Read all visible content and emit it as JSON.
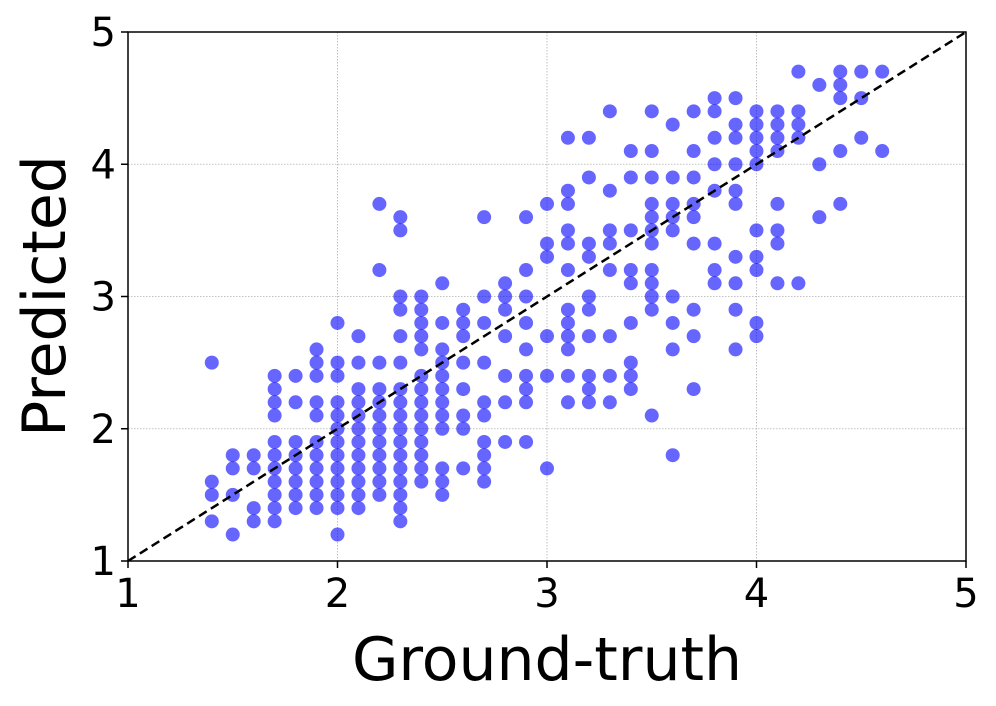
{
  "chart_data": {
    "type": "scatter",
    "xlabel": "Ground-truth",
    "ylabel": "Predicted",
    "xlim": [
      1,
      5
    ],
    "ylim": [
      1,
      5
    ],
    "xticks": [
      1,
      2,
      3,
      4,
      5
    ],
    "yticks": [
      1,
      2,
      3,
      4,
      5
    ],
    "grid": true,
    "diagonal": true,
    "color": "#0000ff",
    "opacity": 0.6,
    "x": [
      1.4,
      1.4,
      1.4,
      1.4,
      1.5,
      1.5,
      1.5,
      1.5,
      1.6,
      1.6,
      1.6,
      1.6,
      1.7,
      1.7,
      1.7,
      1.7,
      1.7,
      1.7,
      1.7,
      1.7,
      1.7,
      1.7,
      1.7,
      1.8,
      1.8,
      1.8,
      1.8,
      1.8,
      1.8,
      1.8,
      1.8,
      1.9,
      1.9,
      1.9,
      1.9,
      1.9,
      1.9,
      1.9,
      1.9,
      1.9,
      1.9,
      1.9,
      2.0,
      2.0,
      2.0,
      2.0,
      2.0,
      2.0,
      2.0,
      2.0,
      2.0,
      2.0,
      2.0,
      2.0,
      2.0,
      2.1,
      2.1,
      2.1,
      2.1,
      2.1,
      2.1,
      2.1,
      2.1,
      2.1,
      2.1,
      2.1,
      2.1,
      2.2,
      2.2,
      2.2,
      2.2,
      2.2,
      2.2,
      2.2,
      2.2,
      2.2,
      2.2,
      2.2,
      2.2,
      2.3,
      2.3,
      2.3,
      2.3,
      2.3,
      2.3,
      2.3,
      2.3,
      2.3,
      2.3,
      2.3,
      2.3,
      2.3,
      2.3,
      2.3,
      2.3,
      2.3,
      2.4,
      2.4,
      2.4,
      2.4,
      2.4,
      2.4,
      2.4,
      2.4,
      2.4,
      2.4,
      2.4,
      2.4,
      2.4,
      2.4,
      2.5,
      2.5,
      2.5,
      2.5,
      2.5,
      2.5,
      2.5,
      2.5,
      2.5,
      2.5,
      2.5,
      2.5,
      2.6,
      2.6,
      2.6,
      2.6,
      2.6,
      2.6,
      2.6,
      2.6,
      2.7,
      2.7,
      2.7,
      2.7,
      2.7,
      2.7,
      2.7,
      2.7,
      2.7,
      2.7,
      2.8,
      2.8,
      2.8,
      2.8,
      2.8,
      2.8,
      2.8,
      2.9,
      2.9,
      2.9,
      2.9,
      2.9,
      2.9,
      2.9,
      2.9,
      2.9,
      3.0,
      3.0,
      3.0,
      3.0,
      3.0,
      3.0,
      3.1,
      3.1,
      3.1,
      3.1,
      3.1,
      3.1,
      3.1,
      3.1,
      3.1,
      3.1,
      3.1,
      3.1,
      3.2,
      3.2,
      3.2,
      3.2,
      3.2,
      3.2,
      3.2,
      3.2,
      3.2,
      3.2,
      3.3,
      3.3,
      3.3,
      3.3,
      3.3,
      3.3,
      3.3,
      3.3,
      3.4,
      3.4,
      3.4,
      3.4,
      3.4,
      3.4,
      3.4,
      3.4,
      3.4,
      3.5,
      3.5,
      3.5,
      3.5,
      3.5,
      3.5,
      3.5,
      3.5,
      3.5,
      3.5,
      3.5,
      3.5,
      3.6,
      3.6,
      3.6,
      3.6,
      3.6,
      3.6,
      3.6,
      3.6,
      3.6,
      3.7,
      3.7,
      3.7,
      3.7,
      3.7,
      3.7,
      3.7,
      3.7,
      3.7,
      3.8,
      3.8,
      3.8,
      3.8,
      3.8,
      3.8,
      3.8,
      3.8,
      3.9,
      3.9,
      3.9,
      3.9,
      3.9,
      3.9,
      3.9,
      3.9,
      3.9,
      3.9,
      4.0,
      4.0,
      4.0,
      4.0,
      4.0,
      4.0,
      4.0,
      4.0,
      4.0,
      4.0,
      4.1,
      4.1,
      4.1,
      4.1,
      4.1,
      4.1,
      4.1,
      4.1,
      4.2,
      4.2,
      4.2,
      4.2,
      4.2,
      4.3,
      4.3,
      4.3,
      4.4,
      4.4,
      4.4,
      4.4,
      4.4,
      4.5,
      4.5,
      4.5,
      4.6,
      4.6
    ],
    "values": [
      2.5,
      1.6,
      1.5,
      1.3,
      1.8,
      1.7,
      1.5,
      1.2,
      1.8,
      1.7,
      1.4,
      1.3,
      2.4,
      2.3,
      2.2,
      2.1,
      1.9,
      1.8,
      1.7,
      1.6,
      1.5,
      1.4,
      1.3,
      2.4,
      2.2,
      1.9,
      1.8,
      1.7,
      1.6,
      1.5,
      1.4,
      2.6,
      2.5,
      2.4,
      2.2,
      2.1,
      1.9,
      1.8,
      1.7,
      1.6,
      1.5,
      1.4,
      2.8,
      2.5,
      2.4,
      2.2,
      2.1,
      2.0,
      1.9,
      1.8,
      1.7,
      1.6,
      1.5,
      1.4,
      1.2,
      2.7,
      2.5,
      2.3,
      2.2,
      2.1,
      2.0,
      1.9,
      1.8,
      1.7,
      1.6,
      1.5,
      1.4,
      3.7,
      3.2,
      2.5,
      2.3,
      2.2,
      2.1,
      2.0,
      1.9,
      1.8,
      1.7,
      1.6,
      1.5,
      3.6,
      3.5,
      3.0,
      2.9,
      2.7,
      2.5,
      2.3,
      2.2,
      2.1,
      2.0,
      1.9,
      1.8,
      1.7,
      1.6,
      1.5,
      1.4,
      1.3,
      3.0,
      2.9,
      2.8,
      2.7,
      2.6,
      2.4,
      2.3,
      2.2,
      2.1,
      2.0,
      1.9,
      1.8,
      1.7,
      1.6,
      3.1,
      2.8,
      2.6,
      2.5,
      2.4,
      2.3,
      2.2,
      2.1,
      2.0,
      1.7,
      1.6,
      1.5,
      2.9,
      2.8,
      2.7,
      2.5,
      2.3,
      2.1,
      2.0,
      1.7,
      3.6,
      3.0,
      2.8,
      2.5,
      2.2,
      2.1,
      1.9,
      1.8,
      1.7,
      1.6,
      3.1,
      3.0,
      2.9,
      2.7,
      2.4,
      2.2,
      1.9,
      3.6,
      3.2,
      3.0,
      2.8,
      2.6,
      2.4,
      2.3,
      2.2,
      1.9,
      3.7,
      3.4,
      3.3,
      2.7,
      2.4,
      1.7,
      4.2,
      3.8,
      3.7,
      3.5,
      3.4,
      3.2,
      2.9,
      2.8,
      2.7,
      2.6,
      2.4,
      2.2,
      4.2,
      3.9,
      3.4,
      3.3,
      3.0,
      2.9,
      2.7,
      2.4,
      2.3,
      2.2,
      4.4,
      3.8,
      3.5,
      3.4,
      3.2,
      2.7,
      2.4,
      2.2,
      4.1,
      3.9,
      3.5,
      3.2,
      3.1,
      2.8,
      2.5,
      2.4,
      2.3,
      4.4,
      4.1,
      3.9,
      3.7,
      3.6,
      3.5,
      3.4,
      3.2,
      3.1,
      3.0,
      2.9,
      2.1,
      4.3,
      3.9,
      3.7,
      3.6,
      3.5,
      3.0,
      2.8,
      2.6,
      1.8,
      4.4,
      4.1,
      3.9,
      3.7,
      3.6,
      3.4,
      2.9,
      2.7,
      2.3,
      4.5,
      4.4,
      4.2,
      4.0,
      3.8,
      3.4,
      3.2,
      3.1,
      4.5,
      4.3,
      4.2,
      4.0,
      3.8,
      3.7,
      3.3,
      3.1,
      2.9,
      2.6,
      4.4,
      4.3,
      4.2,
      4.1,
      4.0,
      3.5,
      3.3,
      3.2,
      2.8,
      2.7,
      4.4,
      4.3,
      4.2,
      4.1,
      3.7,
      3.5,
      3.4,
      3.1,
      4.7,
      4.4,
      4.3,
      4.2,
      3.1,
      4.6,
      4.0,
      3.6,
      4.7,
      4.6,
      4.5,
      4.1,
      3.7,
      4.7,
      4.5,
      4.2,
      4.7,
      4.1
    ]
  }
}
